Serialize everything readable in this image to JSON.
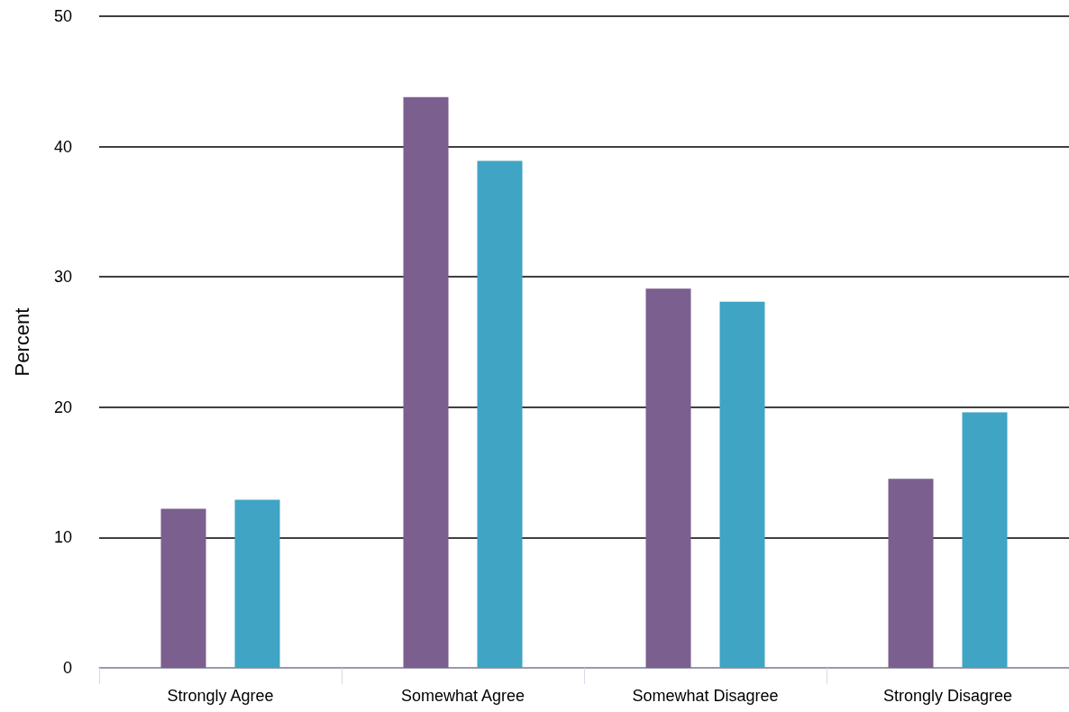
{
  "chart_data": {
    "type": "bar",
    "ylabel": "Percent",
    "categories": [
      "Strongly Agree",
      "Somewhat Agree",
      "Somewhat Disagree",
      "Strongly Disagree"
    ],
    "series": [
      {
        "color": "#7b5f8e",
        "values": [
          12.2,
          43.8,
          29.1,
          14.5
        ]
      },
      {
        "color": "#40a4c4",
        "values": [
          12.9,
          38.9,
          28.1,
          19.6
        ]
      }
    ],
    "ylim": [
      0,
      50
    ],
    "yticks": [
      0,
      10,
      20,
      30,
      40,
      50
    ],
    "grid": "y"
  }
}
